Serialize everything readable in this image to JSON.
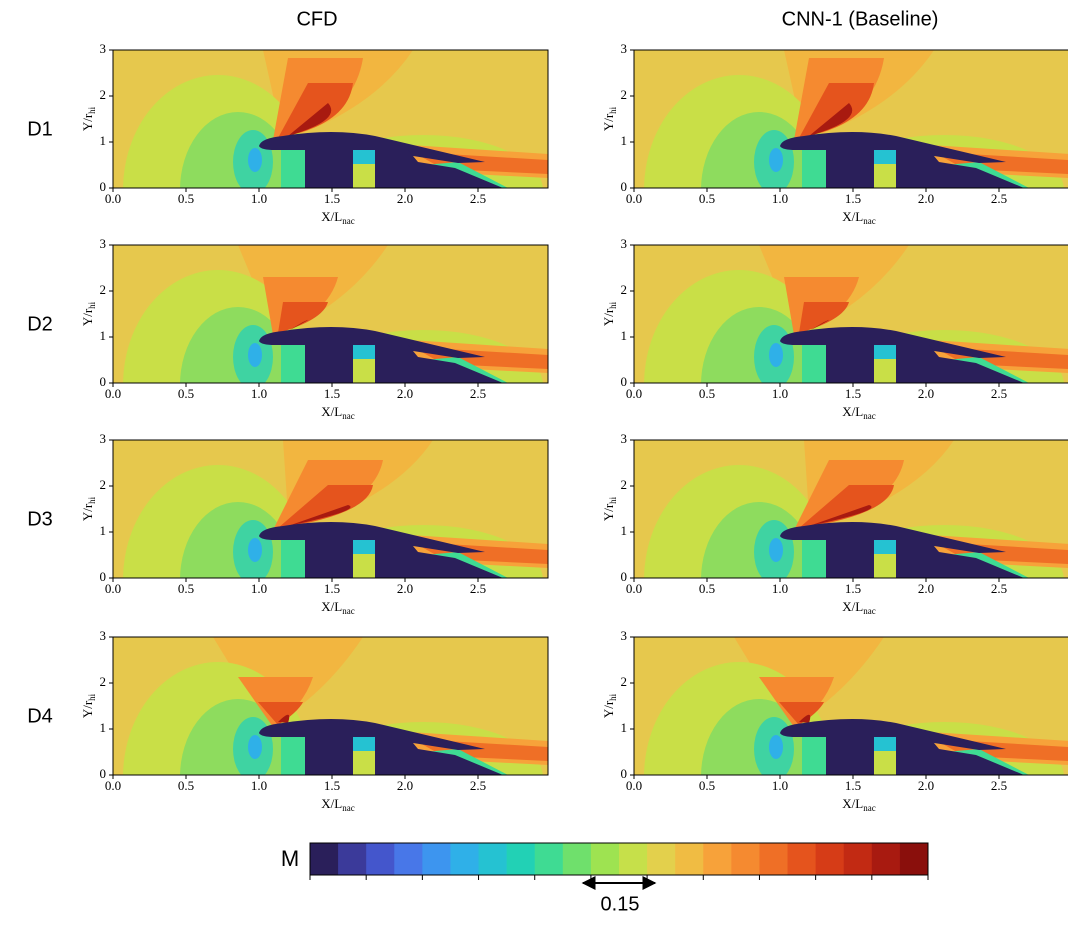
{
  "columns": [
    "CFD",
    "CNN-1 (Baseline)"
  ],
  "rows": [
    "D1",
    "D2",
    "D3",
    "D4"
  ],
  "axes": {
    "x_label": "X/L",
    "x_label_sub": "nac",
    "y_label": "Y/r",
    "y_label_sub": "hi",
    "xticks": [
      "0.0",
      "0.5",
      "1.0",
      "1.5",
      "2.0",
      "2.5"
    ],
    "yticks": [
      "0",
      "1",
      "2",
      "3"
    ]
  },
  "colorbar": {
    "label": "M",
    "scale_label": "0.15",
    "colors": [
      "#2a1f5a",
      "#3b3a9a",
      "#4456cc",
      "#4877e8",
      "#3d95ef",
      "#2fb0e8",
      "#25c2d2",
      "#22d1b5",
      "#3fdb93",
      "#6fe06c",
      "#9ee351",
      "#c6e04a",
      "#e3d04c",
      "#f0bc43",
      "#f7a23a",
      "#f58a30",
      "#ef6f26",
      "#e5541d",
      "#d63c17",
      "#c22a13",
      "#a81a10",
      "#8a0f0c"
    ]
  }
}
